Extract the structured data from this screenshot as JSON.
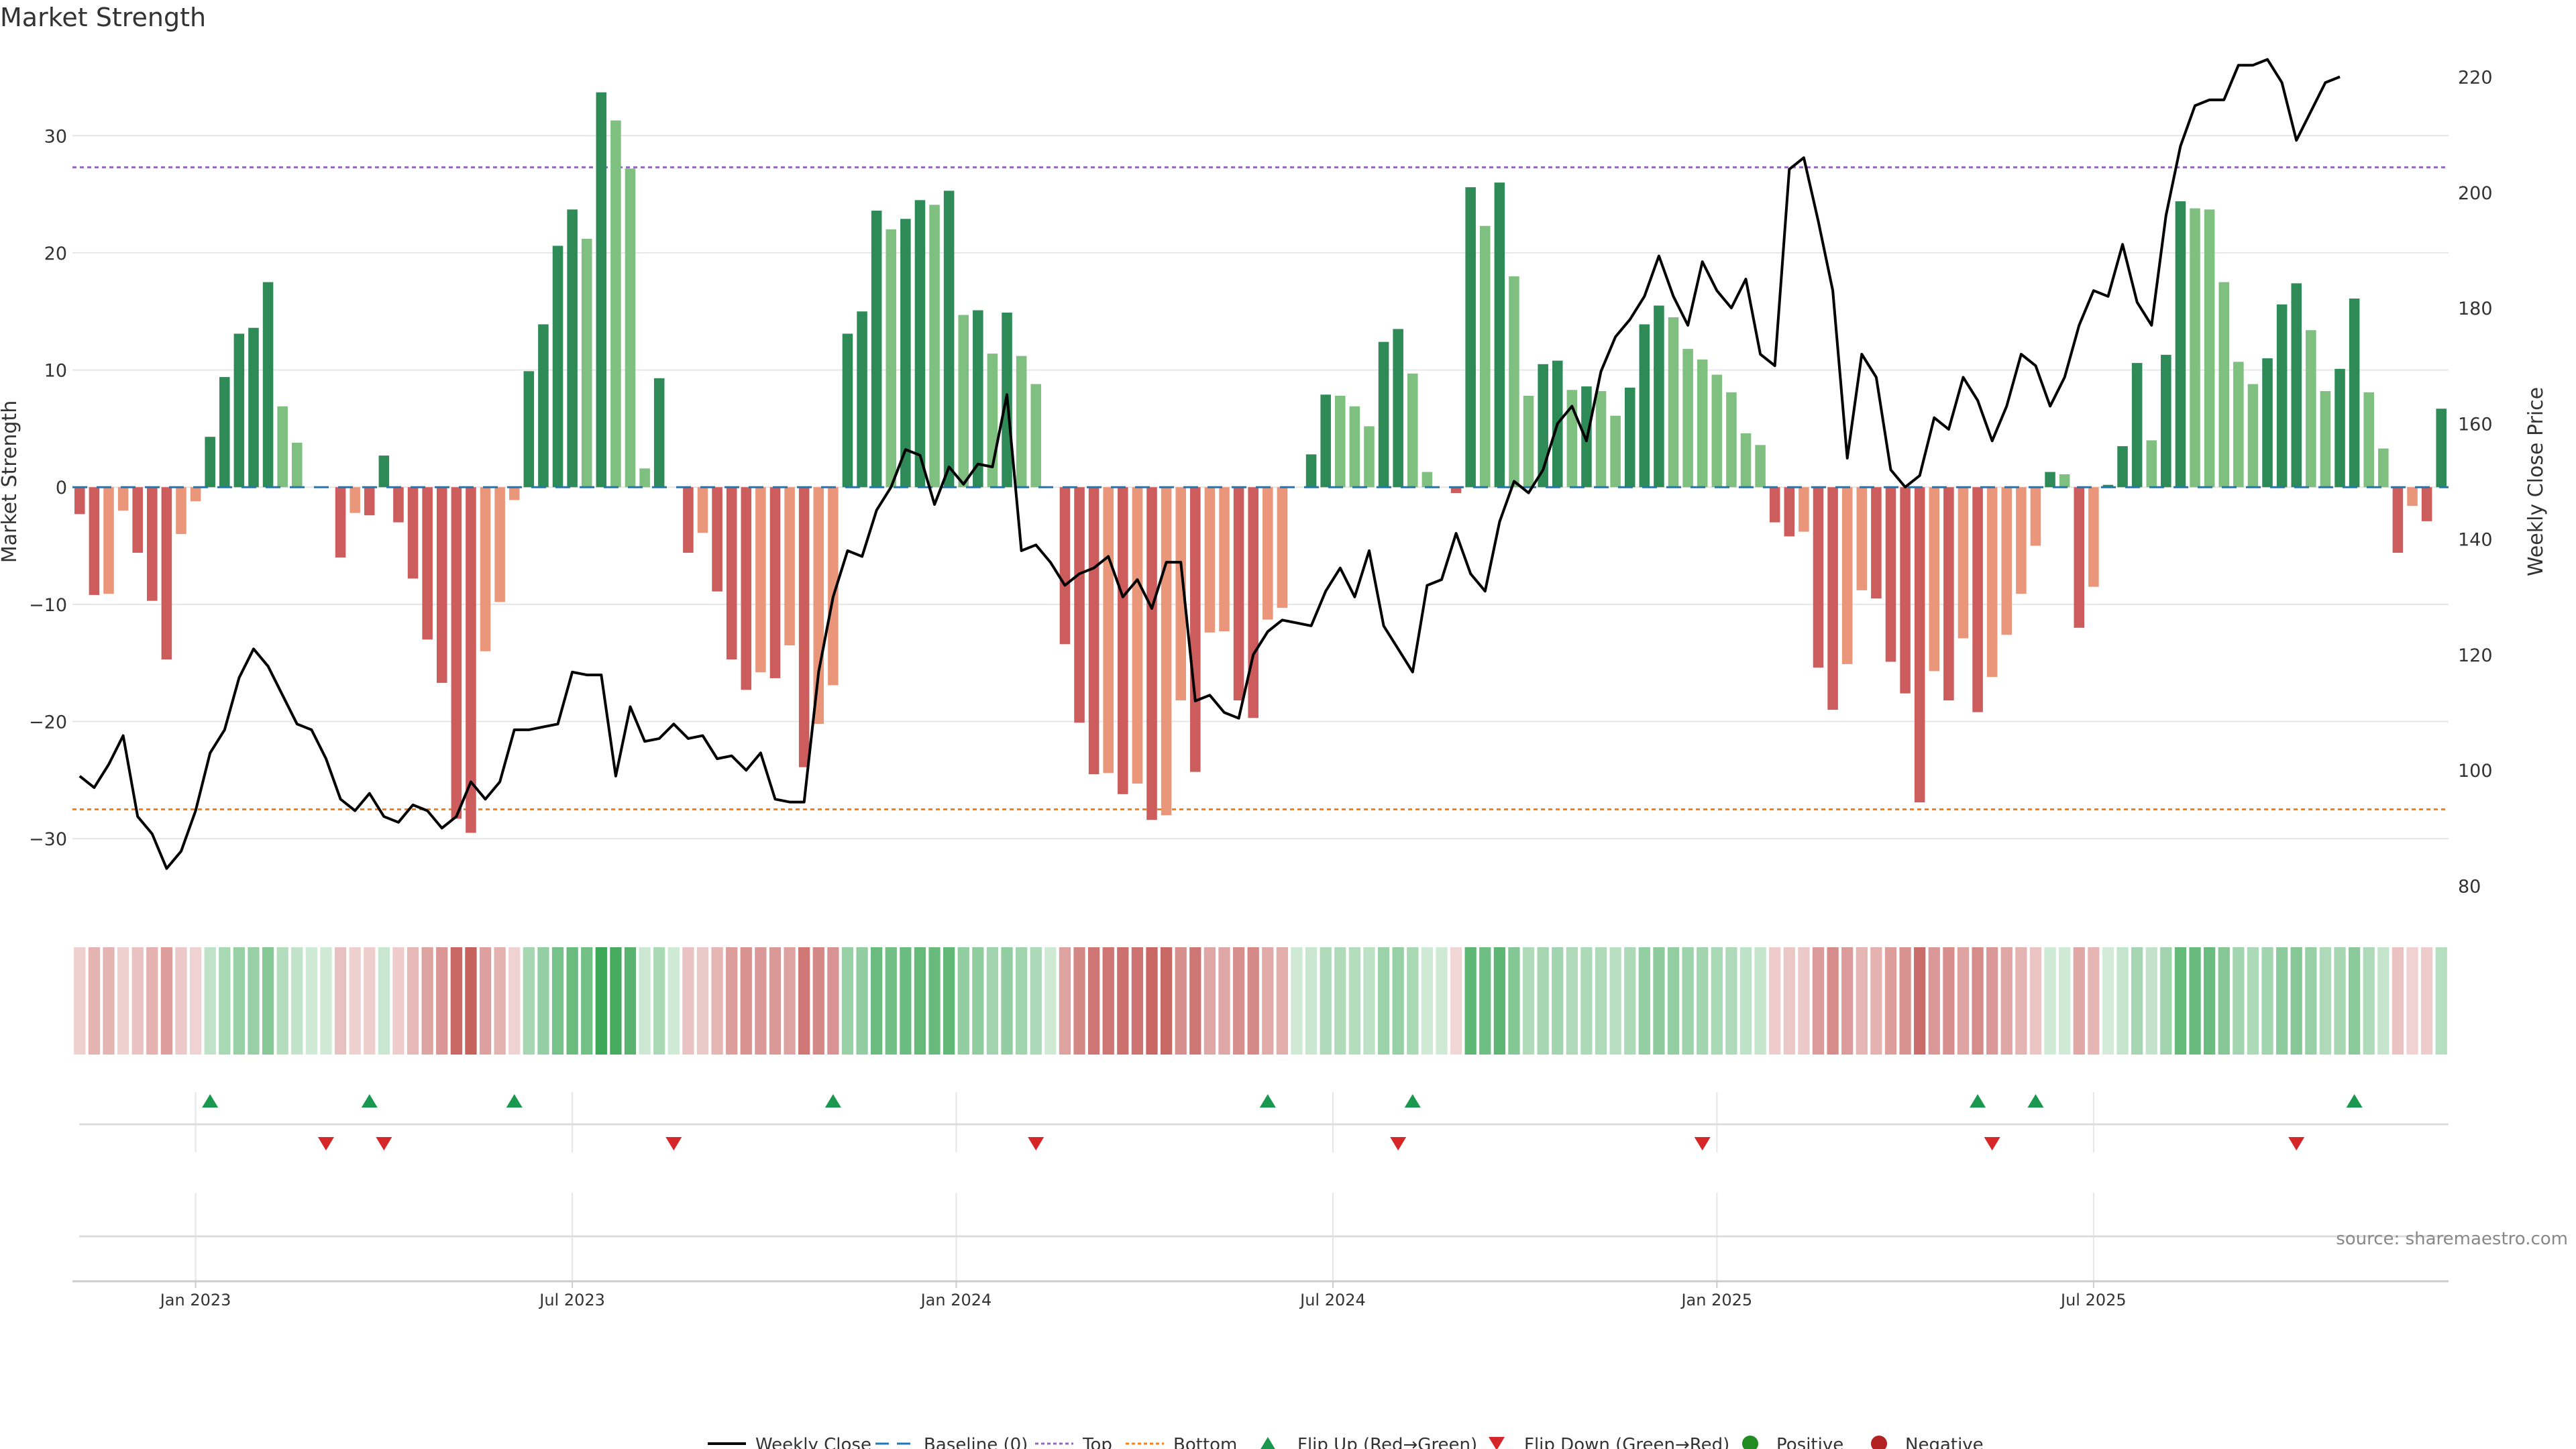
{
  "chart_data": {
    "type": "bar",
    "title": "Market Strength",
    "ylabel_left": "Market Strength",
    "ylabel_right": "Weekly Close Price",
    "source": "source: sharemaestro.com",
    "left_axis": {
      "ylim": [
        -36,
        37
      ],
      "ticks": [
        30,
        20,
        10,
        0,
        -10,
        -20,
        -30
      ]
    },
    "right_axis": {
      "ylim": [
        76,
        224
      ],
      "ticks": [
        220,
        200,
        180,
        160,
        140,
        120,
        100,
        80
      ]
    },
    "x_tick_labels": [
      "Jan 2023",
      "Jul 2023",
      "Jan 2024",
      "Jul 2024",
      "Jan 2025",
      "Jul 2025"
    ],
    "x_tick_week_index": [
      8.5,
      34.5,
      61,
      87,
      113.5,
      139.5
    ],
    "top_line": 27.3,
    "bottom_line": -27.5,
    "strength": [
      -2.3,
      -9.2,
      -9.1,
      -2,
      -5.6,
      -9.7,
      -14.7,
      -4,
      -1.2,
      4.3,
      9.4,
      13.1,
      13.6,
      17.5,
      6.9,
      3.8,
      0,
      0,
      -6,
      -2.2,
      -2.4,
      2.7,
      -3,
      -7.8,
      -13,
      -16.7,
      -28.3,
      -29.5,
      -14,
      -9.8,
      -1.1,
      9.9,
      13.9,
      20.6,
      23.7,
      21.2,
      33.7,
      31.3,
      27.2,
      1.6,
      9.3,
      0,
      -5.6,
      -3.9,
      -8.9,
      -14.7,
      -17.3,
      -15.8,
      -16.3,
      -13.5,
      -23.9,
      -20.2,
      -16.9,
      13.1,
      15,
      23.6,
      22,
      22.9,
      24.5,
      24.1,
      25.3,
      14.7,
      15.1,
      11.4,
      14.9,
      11.2,
      8.8,
      0,
      -13.4,
      -20.1,
      -24.5,
      -24.4,
      -26.2,
      -25.3,
      -28.4,
      -28,
      -18.2,
      -24.3,
      -12.4,
      -12.3,
      -18.2,
      -19.7,
      -11.3,
      -10.3,
      0,
      2.8,
      7.9,
      7.8,
      6.9,
      5.2,
      12.4,
      13.5,
      9.7,
      1.3,
      0,
      -0.5,
      25.6,
      22.3,
      26,
      18,
      7.8,
      10.5,
      10.8,
      8.3,
      8.6,
      8.2,
      6.1,
      8.5,
      13.9,
      15.5,
      14.5,
      11.8,
      10.9,
      9.6,
      8.1,
      4.6,
      3.6,
      -3,
      -4.2,
      -3.8,
      -15.4,
      -19,
      -15.1,
      -8.8,
      -9.5,
      -14.9,
      -17.6,
      -26.9,
      -15.7,
      -18.2,
      -12.9,
      -19.2,
      -16.2,
      -12.6,
      -9.1,
      -5,
      1.3,
      1.1,
      -12,
      -8.5,
      0.2,
      3.5,
      10.6,
      4,
      11.3,
      24.4,
      23.8,
      23.7,
      17.5,
      10.7,
      8.8,
      11,
      15.6,
      17.4,
      13.4,
      8.2,
      10.1,
      16.1,
      8.1,
      3.3,
      -5.6,
      -1.6,
      -2.9,
      6.7
    ],
    "weekly_close": [
      99,
      97,
      101,
      106,
      92,
      89,
      83,
      86,
      93,
      103,
      107,
      116,
      121,
      118,
      113,
      108,
      107,
      102,
      95,
      93,
      96,
      92,
      91,
      94,
      93,
      90,
      92,
      98,
      95,
      98,
      107,
      107,
      107.5,
      108,
      117,
      116.5,
      116.5,
      99,
      111,
      105,
      105.5,
      108,
      105.5,
      106,
      102,
      102.5,
      100,
      103,
      95,
      94.5,
      94.5,
      117,
      130,
      138,
      137,
      145,
      149,
      155.5,
      154.5,
      146,
      152.5,
      149.5,
      153,
      152.5,
      165,
      138,
      139,
      136,
      132,
      134,
      135,
      137,
      130,
      133,
      128,
      136,
      136,
      112,
      113,
      110,
      109,
      120,
      124,
      126,
      125.5,
      125,
      131,
      135,
      130,
      138,
      125,
      121,
      117,
      132,
      133,
      141,
      134,
      131,
      143,
      150,
      148,
      152,
      160,
      163,
      157,
      169,
      175,
      178,
      182,
      189,
      182,
      177,
      188,
      183,
      180,
      185,
      172,
      170,
      204,
      206,
      195,
      183,
      154,
      172,
      168,
      152,
      149,
      151,
      161,
      159,
      168,
      164,
      157,
      163,
      172,
      170,
      163,
      168,
      177,
      183,
      182,
      191,
      181,
      177,
      196,
      208,
      215,
      216,
      216,
      222,
      222,
      223,
      219,
      209,
      214,
      219,
      220
    ],
    "legend": [
      "Weekly Close",
      "Baseline (0)",
      "Top",
      "Bottom",
      "Flip Up (Red→Green)",
      "Flip Down (Green→Red)",
      "Positive",
      "Negative"
    ],
    "flip_up_weeks": [
      9,
      20,
      30,
      52,
      82,
      92,
      131,
      135,
      157
    ],
    "flip_down_weeks": [
      17,
      21,
      41,
      66,
      91,
      112,
      132,
      153
    ],
    "colors": {
      "pos_strong": "#2e8b57",
      "pos_light": "#7fbf7f",
      "neg_strong": "#cd5c5c",
      "neg_light": "#e9967a",
      "price_line": "#000000",
      "baseline": "#1f77b4",
      "top": "#9467bd",
      "bottom": "#ff7f0e",
      "flip_up": "#1a9850",
      "flip_down": "#d62728",
      "positive_dot": "#228b22",
      "negative_dot": "#b22222",
      "grid": "#e6e6e6",
      "axis_text": "#333333"
    }
  }
}
